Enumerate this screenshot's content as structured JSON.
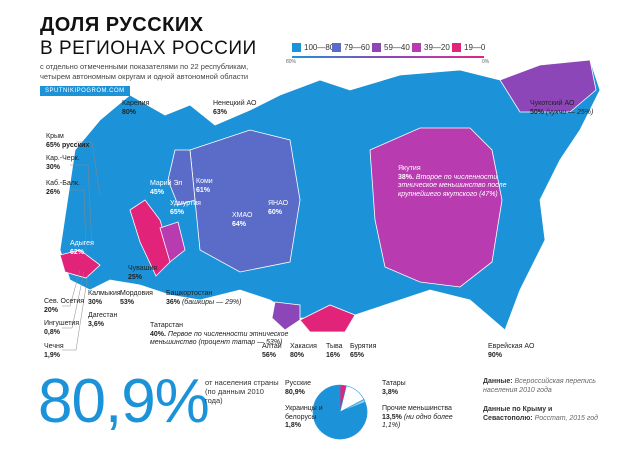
{
  "header": {
    "title_line1": "ДОЛЯ РУССКИХ",
    "title_line2": "В РЕГИОНАХ РОССИИ",
    "subtitle": "с отдельно отмеченными показателями по 22 республикам, четырем автономным округам и одной автономной области",
    "site": "SPUTNIKIPOGROM.COM"
  },
  "legend": {
    "items": [
      {
        "label": "100—80%",
        "color": "#1c93d8"
      },
      {
        "label": "79—60",
        "color": "#5b6cc8"
      },
      {
        "label": "59—40",
        "color": "#8c46b8"
      },
      {
        "label": "39—20",
        "color": "#b83bb0"
      },
      {
        "label": "19—0",
        "color": "#e2237a"
      }
    ],
    "scale_start": "80%",
    "scale_end": "0%"
  },
  "map_labels": [
    {
      "name": "Карелия",
      "value": "80%"
    },
    {
      "name": "Ненецкий АО",
      "value": "63%"
    },
    {
      "name": "Крым",
      "value": "65% русских"
    },
    {
      "name": "Кар.-Черк.",
      "value": "30%"
    },
    {
      "name": "Каб.-Балк.",
      "value": "26%"
    },
    {
      "name": "Марий Эл",
      "value": "45%"
    },
    {
      "name": "Коми",
      "value": "61%"
    },
    {
      "name": "Удмуртия",
      "value": "65%"
    },
    {
      "name": "ХМАО",
      "value": "64%"
    },
    {
      "name": "ЯНАО",
      "value": "60%"
    },
    {
      "name": "Адыгея",
      "value": "62%"
    },
    {
      "name": "Якутия",
      "value": "38%.",
      "note": "Второе по численности этническое меньшинство после крупнейшего якутского (47%)"
    },
    {
      "name": "Чукотский АО",
      "value": "50%",
      "note": "(чукчи — 25%)"
    },
    {
      "name": "Чувашия",
      "value": "25%"
    },
    {
      "name": "Калмыкия",
      "value": "30%"
    },
    {
      "name": "Мордовия",
      "value": "53%"
    },
    {
      "name": "Башкортостан",
      "value": "36%",
      "note": "(башкиры — 29%)"
    },
    {
      "name": "Сев. Осетия",
      "value": "20%"
    },
    {
      "name": "Дагестан",
      "value": "3,6%"
    },
    {
      "name": "Ингушетия",
      "value": "0,8%"
    },
    {
      "name": "Чечня",
      "value": "1,9%"
    },
    {
      "name": "Татарстан",
      "value": "40%.",
      "note": "Первое по численности этническое меньшинство (процент татар — 53%)"
    },
    {
      "name": "Алтай",
      "value": "56%"
    },
    {
      "name": "Хакасия",
      "value": "80%"
    },
    {
      "name": "Тыва",
      "value": "16%"
    },
    {
      "name": "Бурятия",
      "value": "65%"
    },
    {
      "name": "Еврейская АО",
      "value": "90%"
    }
  ],
  "summary": {
    "big_value": "80,9%",
    "big_caption": "от населения страны (по данным 2010 года)"
  },
  "pie": {
    "slices": [
      {
        "name": "Русские",
        "value": 80.9,
        "value_label": "80,9%",
        "color": "#1c93d8"
      },
      {
        "name": "Татары",
        "value": 3.8,
        "value_label": "3,8%",
        "color": "#e2237a"
      },
      {
        "name": "Украинцы и белорусы",
        "value": 1.8,
        "value_label": "1,8%",
        "color": "#8fd0f0"
      },
      {
        "name": "Прочие меньшинства",
        "value": 13.5,
        "value_label": "13,5%",
        "note": "(ни одно более 1,1%)",
        "color": "#ffffff"
      }
    ]
  },
  "sources": [
    {
      "label": "Данные:",
      "text": "Всероссийская перепись населения 2010 года"
    },
    {
      "label": "Данные по Крыму и Севастополю:",
      "text": "Росстат, 2015 год"
    }
  ]
}
